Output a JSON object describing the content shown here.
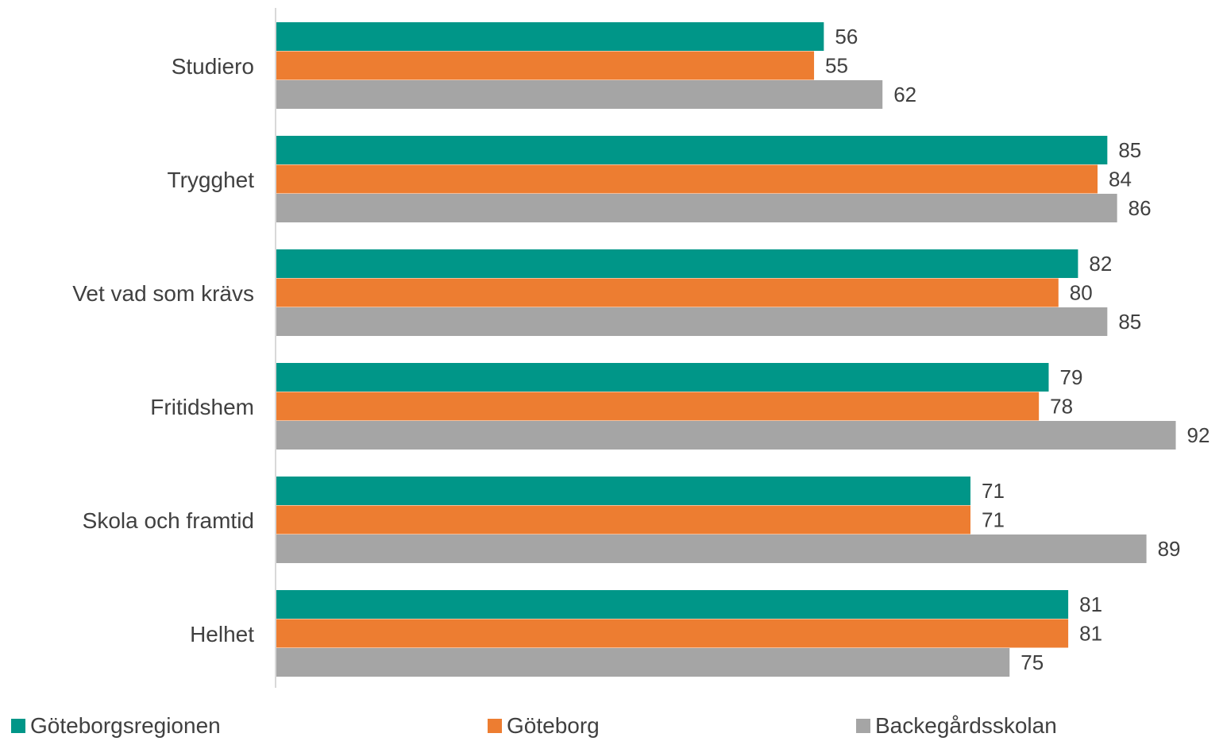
{
  "chart_data": {
    "type": "bar",
    "orientation": "horizontal",
    "categories": [
      "Studiero",
      "Trygghet",
      "Vet vad som krävs",
      "Fritidshem",
      "Skola och framtid",
      "Helhet"
    ],
    "series": [
      {
        "name": "Göteborgsregionen",
        "color": "#009688",
        "values": [
          56,
          85,
          82,
          79,
          71,
          81
        ]
      },
      {
        "name": "Göteborg",
        "color": "#ED7D31",
        "values": [
          55,
          84,
          80,
          78,
          71,
          81
        ]
      },
      {
        "name": "Backegårdsskolan",
        "color": "#A5A5A5",
        "values": [
          62,
          86,
          85,
          92,
          89,
          75
        ]
      }
    ],
    "xlim": [
      0,
      92
    ],
    "grid": false,
    "legend_position": "bottom",
    "data_labels": true
  }
}
